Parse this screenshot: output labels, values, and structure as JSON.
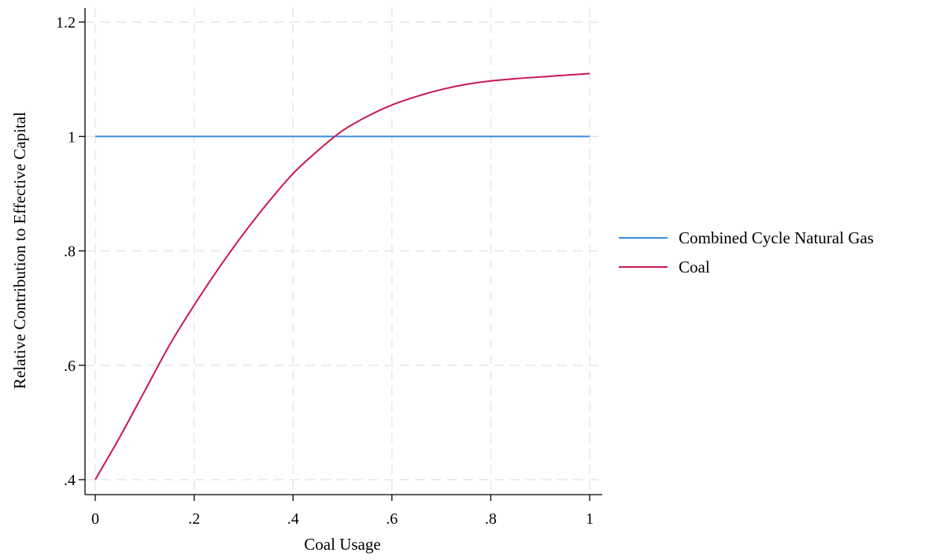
{
  "chart_data": {
    "type": "line",
    "title": "",
    "xlabel": "Coal Usage",
    "ylabel": "Relative Contribution to Effective Capital",
    "xlim": [
      0,
      1
    ],
    "ylim": [
      0.4,
      1.2
    ],
    "xticks": [
      {
        "value": 0,
        "label": "0"
      },
      {
        "value": 0.2,
        "label": ".2"
      },
      {
        "value": 0.4,
        "label": ".4"
      },
      {
        "value": 0.6,
        "label": ".6"
      },
      {
        "value": 0.8,
        "label": ".8"
      },
      {
        "value": 1,
        "label": "1"
      }
    ],
    "yticks": [
      {
        "value": 0.4,
        "label": ".4"
      },
      {
        "value": 0.6,
        "label": ".6"
      },
      {
        "value": 0.8,
        "label": ".8"
      },
      {
        "value": 1.0,
        "label": "1"
      },
      {
        "value": 1.2,
        "label": "1.2"
      }
    ],
    "grid": true,
    "legend_position": "right",
    "series": [
      {
        "name": "Combined Cycle Natural Gas",
        "color": "#3a8ee6",
        "x": [
          0,
          0.1,
          0.2,
          0.3,
          0.4,
          0.5,
          0.6,
          0.7,
          0.8,
          0.9,
          1.0
        ],
        "y": [
          1.0,
          1.0,
          1.0,
          1.0,
          1.0,
          1.0,
          1.0,
          1.0,
          1.0,
          1.0,
          1.0
        ]
      },
      {
        "name": "Coal",
        "color": "#c8184f",
        "x": [
          0,
          0.05,
          0.1,
          0.15,
          0.2,
          0.25,
          0.3,
          0.35,
          0.4,
          0.45,
          0.5,
          0.55,
          0.6,
          0.65,
          0.7,
          0.75,
          0.8,
          0.85,
          0.9,
          0.95,
          1.0
        ],
        "y": [
          0.4,
          0.475,
          0.555,
          0.635,
          0.705,
          0.77,
          0.83,
          0.885,
          0.935,
          0.975,
          1.01,
          1.035,
          1.055,
          1.07,
          1.082,
          1.091,
          1.097,
          1.101,
          1.104,
          1.107,
          1.11
        ]
      }
    ]
  }
}
